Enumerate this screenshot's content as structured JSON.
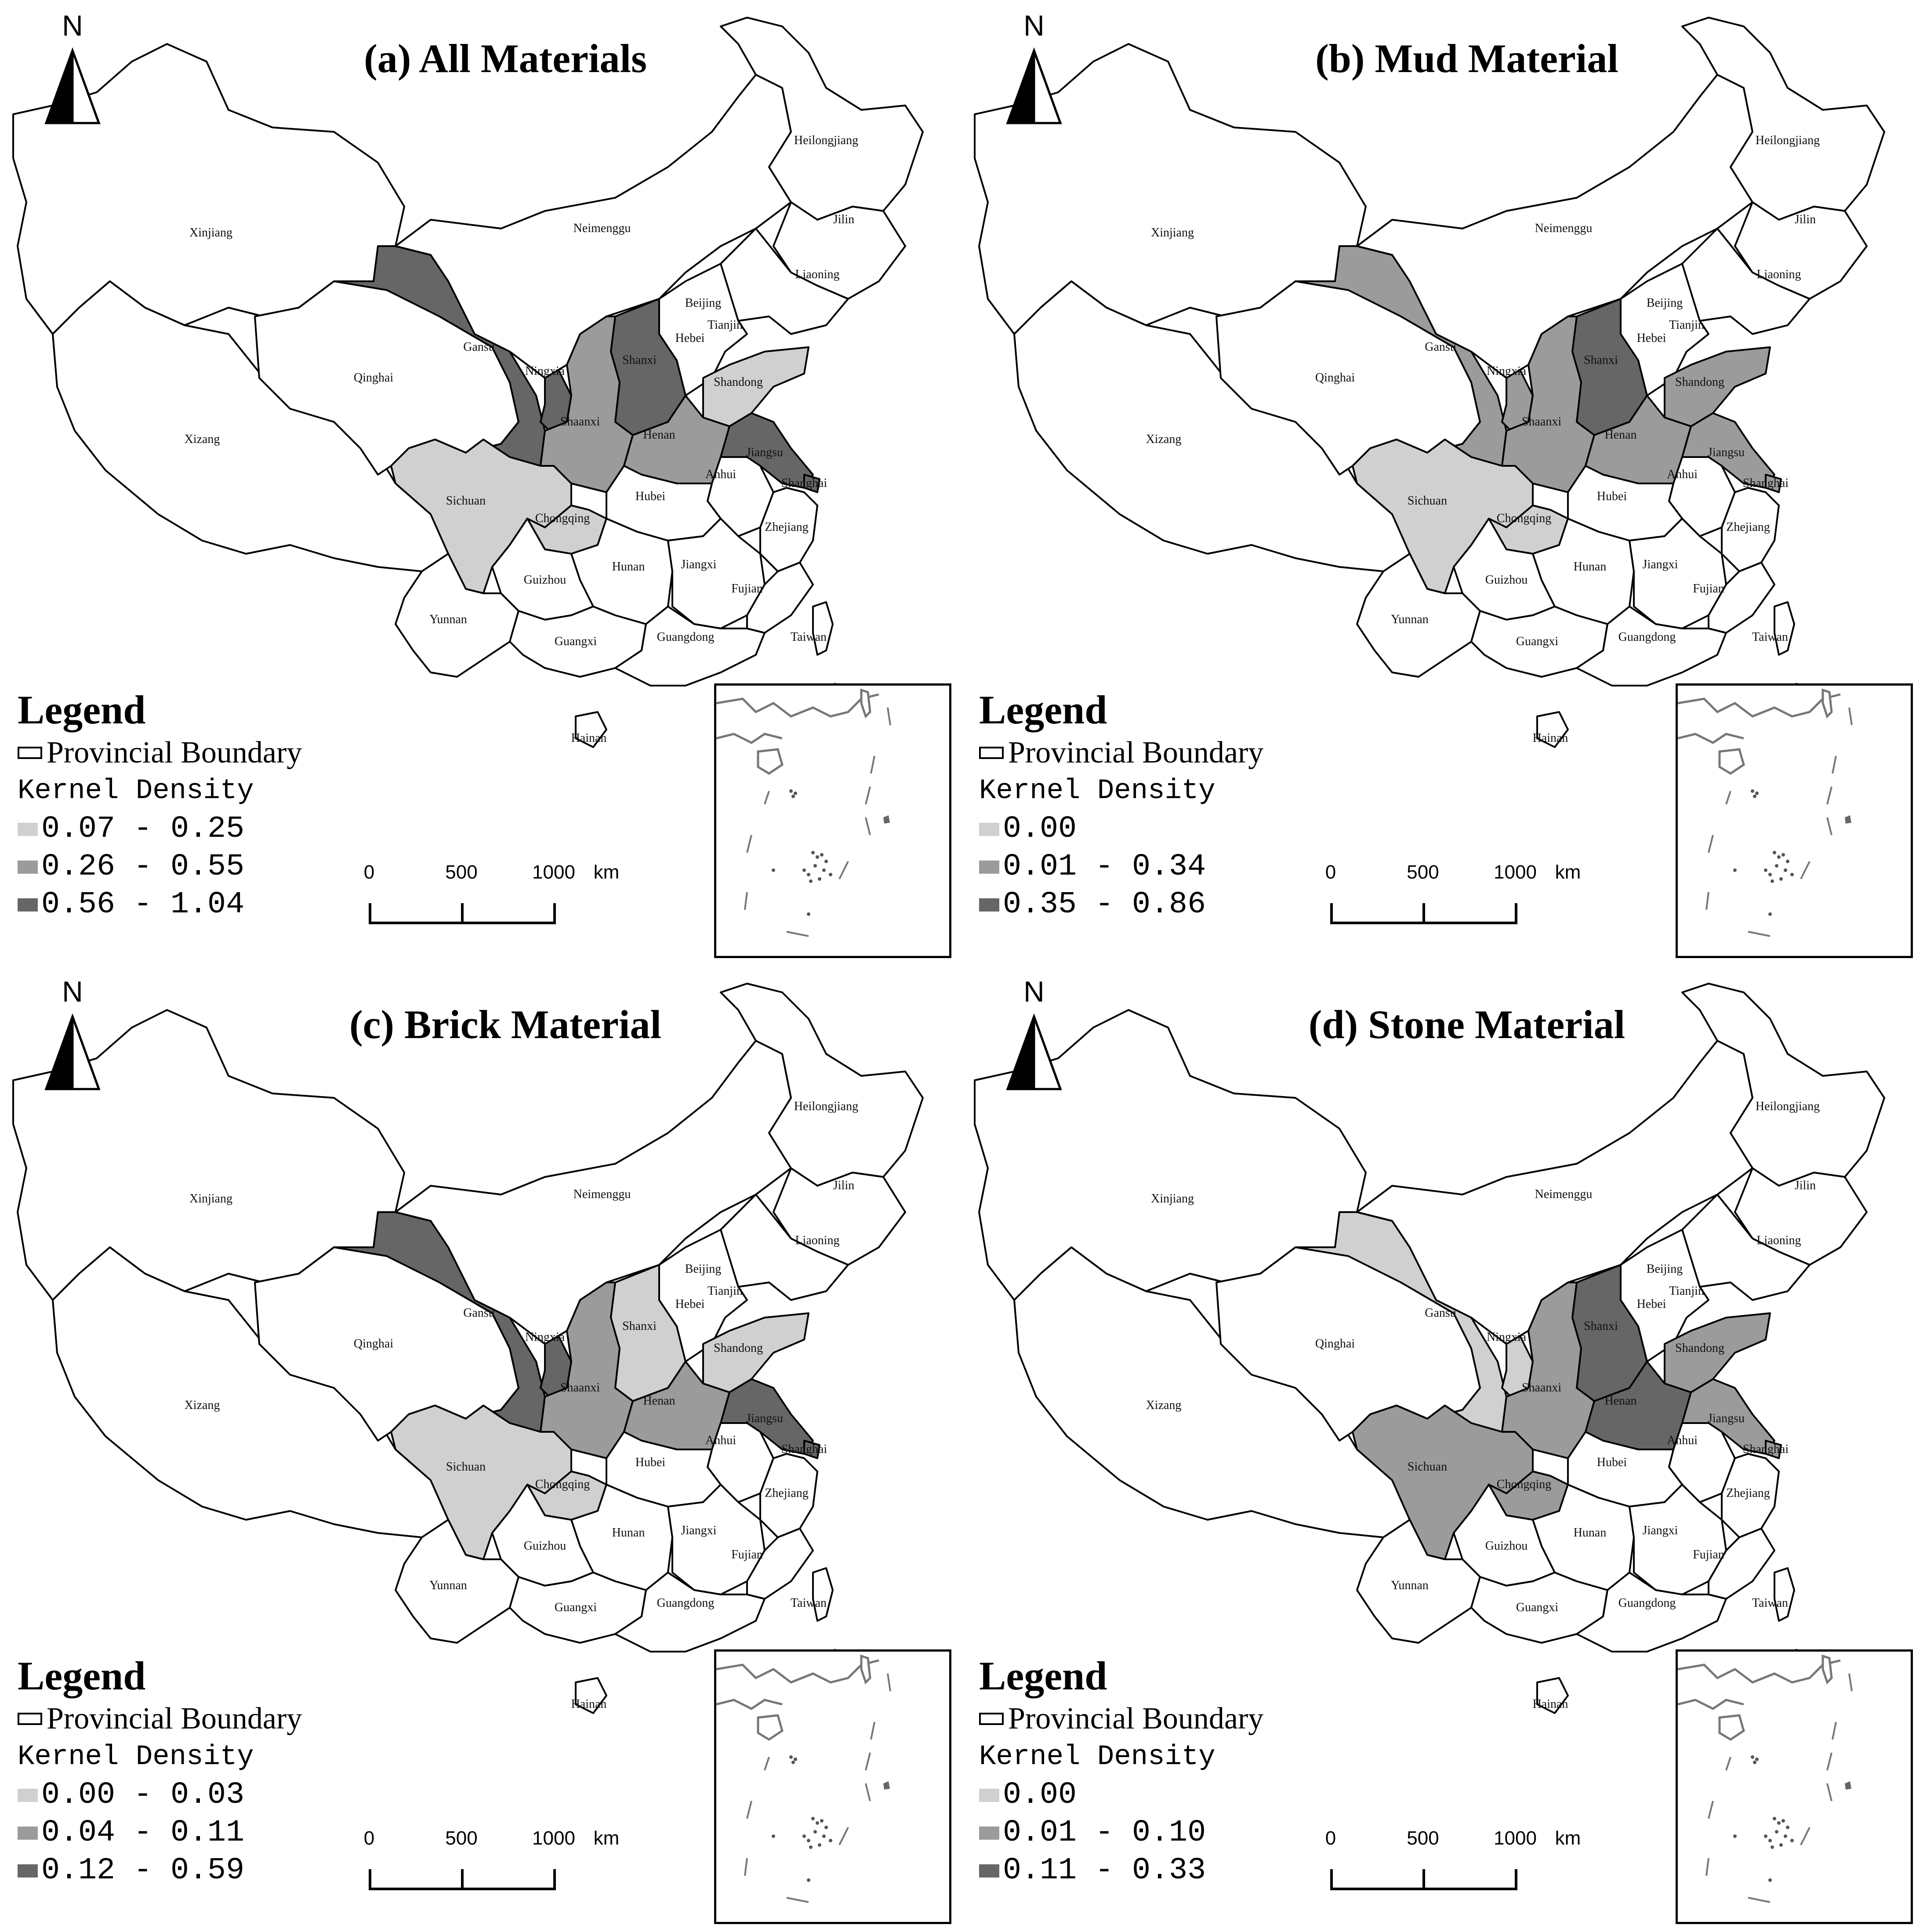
{
  "north_label": "N",
  "colors": {
    "low": "#d0d0d0",
    "mid": "#9b9b9b",
    "high": "#666666",
    "none": "#ffffff",
    "border": "#000000"
  },
  "province_names": {
    "xinjiang": "Xinjiang",
    "xizang": "Xizang",
    "qinghai": "Qinghai",
    "gansu": "Gansu",
    "ningxia": "Ningxia",
    "neimenggu": "Neimenggu",
    "heilongjiang": "Heilongjiang",
    "jilin": "Jilin",
    "liaoning": "Liaoning",
    "beijing": "Beijing",
    "tianjin": "Tianjin",
    "hebei": "Hebei",
    "shanxi": "Shanxi",
    "shaanxi": "Shaanxi",
    "shandong": "Shandong",
    "henan": "Henan",
    "jiangsu": "Jiangsu",
    "shanghai": "Shanghai",
    "anhui": "Anhui",
    "hubei": "Hubei",
    "sichuan": "Sichuan",
    "chongqing": "Chongqing",
    "zhejiang": "Zhejiang",
    "hunan": "Hunan",
    "jiangxi": "Jiangxi",
    "fujian": "Fujian",
    "guizhou": "Guizhou",
    "yunnan": "Yunnan",
    "guangxi": "Guangxi",
    "guangdong": "Guangdong",
    "taiwan": "Taiwan",
    "hainan": "Hainan"
  },
  "legend_common": {
    "title": "Legend",
    "boundary_label": "Provincial Boundary",
    "density_heading": "Kernel Density"
  },
  "scale": {
    "ticks": [
      "0",
      "500",
      "1000"
    ],
    "unit": "km"
  },
  "panels": [
    {
      "title": "(a) All Materials",
      "legend_classes": [
        {
          "label": "0.07 - 0.25",
          "level": "low"
        },
        {
          "label": "0.26 - 0.55",
          "level": "mid"
        },
        {
          "label": "0.56 - 1.04",
          "level": "high"
        }
      ],
      "province_levels": {
        "gansu": "high",
        "ningxia": "high",
        "shanxi": "high",
        "jiangsu": "high",
        "shanghai": "high",
        "shaanxi": "mid",
        "henan": "mid",
        "sichuan": "low",
        "chongqing": "low",
        "shandong": "low",
        "beijing": "low",
        "tianjin": "low"
      }
    },
    {
      "title": "(b) Mud Material",
      "legend_classes": [
        {
          "label": "0.00",
          "level": "low"
        },
        {
          "label": "0.01 - 0.34",
          "level": "mid"
        },
        {
          "label": "0.35 - 0.86",
          "level": "high"
        }
      ],
      "province_levels": {
        "shanxi": "high",
        "tianjin": "high",
        "gansu": "mid",
        "ningxia": "mid",
        "shaanxi": "mid",
        "henan": "mid",
        "shandong": "mid",
        "jiangsu": "mid",
        "shanghai": "mid",
        "beijing": "mid",
        "sichuan": "low",
        "chongqing": "low"
      }
    },
    {
      "title": "(c) Brick Material",
      "legend_classes": [
        {
          "label": "0.00 - 0.03",
          "level": "low"
        },
        {
          "label": "0.04 - 0.11",
          "level": "mid"
        },
        {
          "label": "0.12 - 0.59",
          "level": "high"
        }
      ],
      "province_levels": {
        "gansu": "high",
        "ningxia": "high",
        "jiangsu": "high",
        "shanghai": "high",
        "shaanxi": "mid",
        "henan": "mid",
        "tianjin": "mid",
        "shanxi": "low",
        "shandong": "low",
        "sichuan": "low",
        "chongqing": "low",
        "beijing": "low"
      }
    },
    {
      "title": "(d) Stone Material",
      "legend_classes": [
        {
          "label": "0.00",
          "level": "low"
        },
        {
          "label": "0.01 - 0.10",
          "level": "mid"
        },
        {
          "label": "0.11 - 0.33",
          "level": "high"
        }
      ],
      "province_levels": {
        "shanxi": "high",
        "henan": "high",
        "sichuan": "mid",
        "chongqing": "mid",
        "shaanxi": "mid",
        "shandong": "mid",
        "jiangsu": "mid",
        "shanghai": "mid",
        "tianjin": "mid",
        "beijing": "mid",
        "gansu": "low",
        "ningxia": "low"
      }
    }
  ]
}
